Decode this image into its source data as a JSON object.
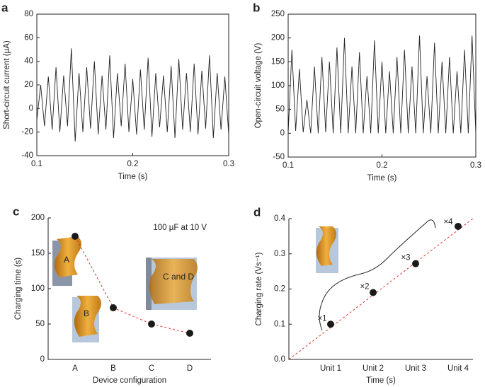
{
  "chart_data": [
    {
      "type": "line",
      "panel_label": "a",
      "x_label": "Time (s)",
      "y_label": "Short-circuit current (µA)",
      "x": [
        0.1,
        0.104,
        0.108,
        0.112,
        0.116,
        0.12,
        0.124,
        0.128,
        0.132,
        0.136,
        0.14,
        0.144,
        0.148,
        0.152,
        0.156,
        0.16,
        0.164,
        0.168,
        0.172,
        0.176,
        0.18,
        0.184,
        0.188,
        0.192,
        0.196,
        0.2,
        0.204,
        0.208,
        0.212,
        0.216,
        0.22,
        0.224,
        0.228,
        0.232,
        0.236,
        0.24,
        0.244,
        0.248,
        0.252,
        0.256,
        0.26,
        0.264,
        0.268,
        0.272,
        0.276,
        0.28,
        0.284,
        0.288,
        0.292,
        0.296,
        0.3
      ],
      "values": [
        -10,
        20,
        -15,
        27,
        -18,
        35,
        -20,
        28,
        -15,
        51,
        -28,
        30,
        -20,
        35,
        -17,
        40,
        -22,
        28,
        -18,
        45,
        -25,
        30,
        -15,
        38,
        -20,
        25,
        -22,
        33,
        -18,
        43,
        -24,
        30,
        -16,
        28,
        -20,
        36,
        -25,
        42,
        -18,
        30,
        -20,
        38,
        -22,
        32,
        -17,
        45,
        -25,
        30,
        -18,
        27,
        -22
      ],
      "color": "#222222",
      "xlim": [
        0.1,
        0.3
      ],
      "xticks": [
        0.1,
        0.2,
        0.3
      ],
      "ylim": [
        -40,
        80
      ],
      "yticks": [
        -40,
        -20,
        0,
        20,
        40,
        60,
        80
      ]
    },
    {
      "type": "line",
      "panel_label": "b",
      "x_label": "Time (s)",
      "y_label": "Open-circuit voltage (V)",
      "x": [
        0.1,
        0.104,
        0.108,
        0.112,
        0.116,
        0.12,
        0.124,
        0.128,
        0.132,
        0.136,
        0.14,
        0.144,
        0.148,
        0.152,
        0.156,
        0.16,
        0.164,
        0.168,
        0.172,
        0.176,
        0.18,
        0.184,
        0.188,
        0.192,
        0.196,
        0.2,
        0.204,
        0.208,
        0.212,
        0.216,
        0.22,
        0.224,
        0.228,
        0.232,
        0.236,
        0.24,
        0.244,
        0.248,
        0.252,
        0.256,
        0.26,
        0.264,
        0.268,
        0.272,
        0.276,
        0.28,
        0.284,
        0.288,
        0.292,
        0.296,
        0.3
      ],
      "values": [
        0,
        175,
        5,
        135,
        2,
        70,
        0,
        140,
        0,
        160,
        2,
        150,
        0,
        180,
        0,
        200,
        0,
        140,
        0,
        170,
        0,
        120,
        0,
        195,
        0,
        150,
        0,
        130,
        0,
        160,
        0,
        175,
        0,
        140,
        0,
        205,
        0,
        120,
        0,
        190,
        0,
        150,
        0,
        160,
        0,
        130,
        0,
        175,
        0,
        205,
        0
      ],
      "color": "#222222",
      "xlim": [
        0.1,
        0.3
      ],
      "xticks": [
        0.1,
        0.2,
        0.3
      ],
      "ylim": [
        -50,
        250
      ],
      "yticks": [
        -50,
        0,
        50,
        100,
        150,
        200,
        250
      ]
    },
    {
      "type": "line",
      "panel_label": "c",
      "x_label": "Device configuration",
      "y_label": "Charging time (s)",
      "annotation": "100 µF at 10 V",
      "inset_labels": [
        "A",
        "B",
        "C and D"
      ],
      "categories": [
        "A",
        "B",
        "C",
        "D"
      ],
      "values": [
        174,
        73,
        50,
        37
      ],
      "color": "#e0342c",
      "ylim": [
        0,
        200
      ],
      "yticks": [
        0,
        50,
        100,
        150,
        200
      ]
    },
    {
      "type": "scatter",
      "panel_label": "d",
      "x_label": "Time (s)",
      "y_label": "Charging rate (Vs⁻¹)",
      "categories": [
        "Unit 1",
        "Unit 2",
        "Unit 3",
        "Unit 4"
      ],
      "values": [
        0.1,
        0.19,
        0.272,
        0.378
      ],
      "point_labels": [
        "×1",
        "×2",
        "×3",
        "×4"
      ],
      "color": "#e0342c",
      "ylim": [
        0,
        0.4
      ],
      "yticks": [
        {
          "value": 0,
          "label": "0.0"
        },
        0.1,
        0.2,
        0.3,
        0.4
      ]
    }
  ]
}
